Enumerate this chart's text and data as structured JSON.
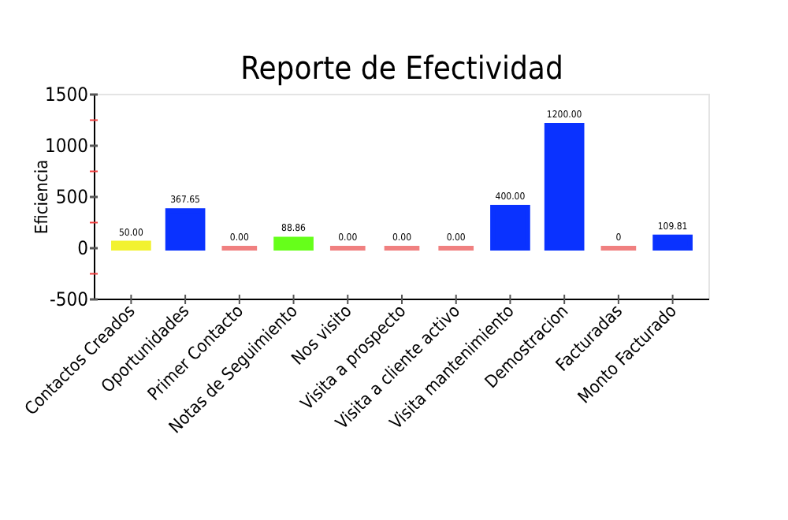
{
  "chart_data": {
    "type": "bar",
    "title": "Reporte de Efectividad",
    "ylabel": "Eficiencia",
    "categories": [
      "Contactos Creados",
      "Oportunidades",
      "Primer Contacto",
      "Notas de Seguimiento",
      "Nos visito",
      "Visita a prospecto",
      "Visita a cliente activo",
      "Visita mantenimiento",
      "Demostracion",
      "Facturadas",
      "Monto Facturado"
    ],
    "values": [
      50,
      367.65,
      0,
      88.86,
      0,
      0,
      0,
      400,
      1200,
      0,
      109.81
    ],
    "value_labels": [
      "50.00",
      "367.65",
      "0.00",
      "88.86",
      "0.00",
      "0.00",
      "0.00",
      "400.00",
      "1200.00",
      "0",
      "109.81"
    ],
    "colors": [
      "#f2f230",
      "#0a32ff",
      "#f08080",
      "#66ff1a",
      "#f08080",
      "#f08080",
      "#f08080",
      "#0a32ff",
      "#0a32ff",
      "#f08080",
      "#0a32ff"
    ],
    "ylim": [
      -500,
      1500
    ],
    "yticks": [
      -500,
      {
        "value": -250,
        "label": null
      },
      0,
      {
        "value": 250,
        "label": null
      },
      500,
      {
        "value": 750,
        "label": null
      },
      1000,
      {
        "value": 1250,
        "label": null
      },
      1500
    ],
    "grid": false
  }
}
